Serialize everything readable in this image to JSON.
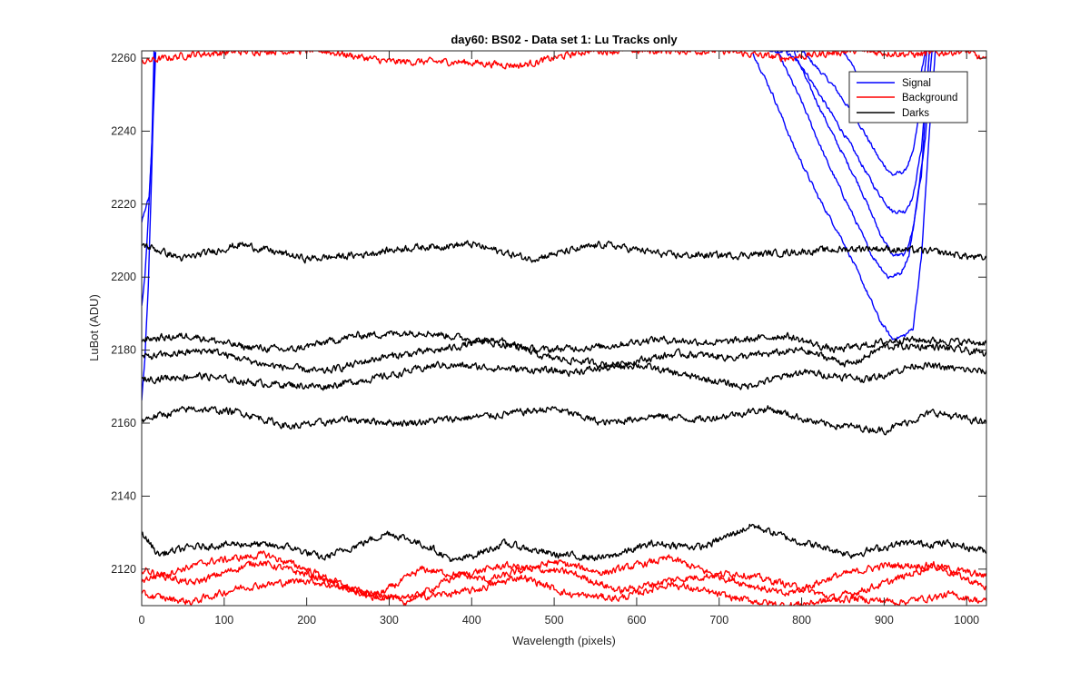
{
  "chart_data": {
    "type": "line",
    "title": "day60: BS02 - Data set 1: Lu Tracks only",
    "xlabel": "Wavelength (pixels)",
    "ylabel": "LuBot (ADU)",
    "xlim": [
      0,
      1024
    ],
    "ylim": [
      2110,
      2262
    ],
    "x_ticks": [
      0,
      100,
      200,
      300,
      400,
      500,
      600,
      700,
      800,
      900,
      1000
    ],
    "y_ticks": [
      2120,
      2140,
      2160,
      2180,
      2200,
      2220,
      2240,
      2260
    ],
    "grid": false,
    "legend_position": "top-right",
    "legend": [
      {
        "label": "Signal",
        "color": "#0000ff"
      },
      {
        "label": "Background",
        "color": "#ff0000"
      },
      {
        "label": "Darks",
        "color": "#000000"
      }
    ],
    "series": [
      {
        "group": "Darks",
        "color": "#000000",
        "points": [
          [
            0,
            2209
          ],
          [
            50,
            2205
          ],
          [
            120,
            2209
          ],
          [
            200,
            2205
          ],
          [
            260,
            2206
          ],
          [
            320,
            2208
          ],
          [
            400,
            2209
          ],
          [
            470,
            2205
          ],
          [
            560,
            2209
          ],
          [
            640,
            2206
          ],
          [
            720,
            2206
          ],
          [
            800,
            2207
          ],
          [
            880,
            2208
          ],
          [
            960,
            2207
          ],
          [
            1024,
            2205
          ]
        ]
      },
      {
        "group": "Darks",
        "color": "#000000",
        "points": [
          [
            0,
            2183
          ],
          [
            60,
            2184
          ],
          [
            120,
            2181
          ],
          [
            180,
            2180
          ],
          [
            260,
            2184
          ],
          [
            340,
            2185
          ],
          [
            400,
            2183
          ],
          [
            480,
            2180
          ],
          [
            560,
            2181
          ],
          [
            620,
            2183
          ],
          [
            700,
            2182
          ],
          [
            780,
            2184
          ],
          [
            840,
            2180
          ],
          [
            920,
            2183
          ],
          [
            1024,
            2182
          ]
        ]
      },
      {
        "group": "Darks",
        "color": "#000000",
        "points": [
          [
            0,
            2178
          ],
          [
            80,
            2180
          ],
          [
            150,
            2176
          ],
          [
            220,
            2174
          ],
          [
            290,
            2178
          ],
          [
            360,
            2180
          ],
          [
            430,
            2183
          ],
          [
            490,
            2178
          ],
          [
            570,
            2176
          ],
          [
            650,
            2179
          ],
          [
            720,
            2178
          ],
          [
            800,
            2180
          ],
          [
            860,
            2176
          ],
          [
            900,
            2181
          ],
          [
            960,
            2181
          ],
          [
            1024,
            2179
          ]
        ]
      },
      {
        "group": "Darks",
        "color": "#000000",
        "points": [
          [
            0,
            2172
          ],
          [
            70,
            2173
          ],
          [
            140,
            2171
          ],
          [
            220,
            2170
          ],
          [
            300,
            2173
          ],
          [
            360,
            2176
          ],
          [
            440,
            2175
          ],
          [
            520,
            2174
          ],
          [
            600,
            2176
          ],
          [
            660,
            2173
          ],
          [
            730,
            2170
          ],
          [
            800,
            2174
          ],
          [
            880,
            2172
          ],
          [
            940,
            2176
          ],
          [
            1024,
            2174
          ]
        ]
      },
      {
        "group": "Darks",
        "color": "#000000",
        "points": [
          [
            0,
            2161
          ],
          [
            60,
            2164
          ],
          [
            120,
            2163
          ],
          [
            180,
            2159
          ],
          [
            250,
            2161
          ],
          [
            320,
            2160
          ],
          [
            420,
            2162
          ],
          [
            500,
            2164
          ],
          [
            560,
            2160
          ],
          [
            620,
            2162
          ],
          [
            680,
            2161
          ],
          [
            760,
            2164
          ],
          [
            820,
            2160
          ],
          [
            900,
            2158
          ],
          [
            960,
            2163
          ],
          [
            1024,
            2160
          ]
        ]
      },
      {
        "group": "Darks",
        "color": "#000000",
        "points": [
          [
            0,
            2130
          ],
          [
            20,
            2124
          ],
          [
            60,
            2126
          ],
          [
            120,
            2127
          ],
          [
            180,
            2126
          ],
          [
            220,
            2123
          ],
          [
            300,
            2130
          ],
          [
            350,
            2126
          ],
          [
            380,
            2122
          ],
          [
            440,
            2127
          ],
          [
            500,
            2124
          ],
          [
            560,
            2123
          ],
          [
            620,
            2127
          ],
          [
            680,
            2126
          ],
          [
            740,
            2132
          ],
          [
            790,
            2128
          ],
          [
            860,
            2124
          ],
          [
            920,
            2127
          ],
          [
            980,
            2127
          ],
          [
            1024,
            2125
          ]
        ]
      },
      {
        "group": "Background",
        "color": "#ff0000",
        "points": [
          [
            0,
            2259
          ],
          [
            60,
            2261
          ],
          [
            140,
            2262
          ],
          [
            220,
            2262
          ],
          [
            300,
            2259
          ],
          [
            380,
            2259
          ],
          [
            460,
            2258
          ],
          [
            540,
            2262
          ],
          [
            620,
            2262
          ],
          [
            700,
            2262
          ],
          [
            780,
            2260
          ],
          [
            860,
            2262
          ],
          [
            940,
            2261
          ],
          [
            1000,
            2262
          ],
          [
            1024,
            2259
          ]
        ]
      },
      {
        "group": "Background",
        "color": "#ff0000",
        "points": [
          [
            0,
            2120
          ],
          [
            60,
            2116
          ],
          [
            140,
            2122
          ],
          [
            210,
            2118
          ],
          [
            280,
            2112
          ],
          [
            340,
            2120
          ],
          [
            420,
            2117
          ],
          [
            500,
            2122
          ],
          [
            560,
            2119
          ],
          [
            640,
            2123
          ],
          [
            700,
            2118
          ],
          [
            780,
            2113
          ],
          [
            840,
            2118
          ],
          [
            900,
            2121
          ],
          [
            960,
            2121
          ],
          [
            1024,
            2118
          ]
        ]
      },
      {
        "group": "Background",
        "color": "#ff0000",
        "points": [
          [
            0,
            2117
          ],
          [
            80,
            2122
          ],
          [
            150,
            2124
          ],
          [
            200,
            2120
          ],
          [
            260,
            2114
          ],
          [
            320,
            2111
          ],
          [
            380,
            2118
          ],
          [
            440,
            2121
          ],
          [
            520,
            2119
          ],
          [
            580,
            2114
          ],
          [
            640,
            2117
          ],
          [
            720,
            2119
          ],
          [
            780,
            2116
          ],
          [
            840,
            2112
          ],
          [
            900,
            2116
          ],
          [
            960,
            2121
          ],
          [
            1024,
            2115
          ]
        ]
      },
      {
        "group": "Background",
        "color": "#ff0000",
        "points": [
          [
            0,
            2113
          ],
          [
            60,
            2111
          ],
          [
            120,
            2115
          ],
          [
            200,
            2117
          ],
          [
            260,
            2114
          ],
          [
            320,
            2112
          ],
          [
            400,
            2114
          ],
          [
            460,
            2118
          ],
          [
            520,
            2113
          ],
          [
            580,
            2112
          ],
          [
            640,
            2116
          ],
          [
            720,
            2112
          ],
          [
            780,
            2110
          ],
          [
            860,
            2112
          ],
          [
            920,
            2111
          ],
          [
            980,
            2113
          ],
          [
            1024,
            2111
          ]
        ]
      },
      {
        "group": "Signal",
        "color": "#0000ff",
        "points": [
          [
            0,
            2192
          ],
          [
            4,
            2200
          ],
          [
            7,
            2212
          ],
          [
            10,
            2225
          ],
          [
            13,
            2240
          ],
          [
            16,
            2262
          ]
        ]
      },
      {
        "group": "Signal",
        "color": "#0000ff",
        "points": [
          [
            0,
            2166
          ],
          [
            4,
            2178
          ],
          [
            8,
            2198
          ],
          [
            11,
            2220
          ],
          [
            14,
            2244
          ],
          [
            17,
            2262
          ]
        ]
      },
      {
        "group": "Signal",
        "color": "#0000ff",
        "points": [
          [
            0,
            2215
          ],
          [
            5,
            2219
          ],
          [
            9,
            2222
          ],
          [
            12,
            2234
          ],
          [
            15,
            2262
          ]
        ]
      },
      {
        "group": "Signal",
        "color": "#0000ff",
        "points": [
          [
            760,
            2262
          ],
          [
            780,
            2262
          ],
          [
            800,
            2262
          ],
          [
            840,
            2252
          ],
          [
            870,
            2242
          ],
          [
            895,
            2232
          ],
          [
            910,
            2228
          ],
          [
            925,
            2229
          ],
          [
            935,
            2234
          ],
          [
            945,
            2248
          ],
          [
            952,
            2262
          ]
        ]
      },
      {
        "group": "Signal",
        "color": "#0000ff",
        "points": [
          [
            780,
            2262
          ],
          [
            800,
            2258
          ],
          [
            830,
            2247
          ],
          [
            860,
            2236
          ],
          [
            890,
            2224
          ],
          [
            910,
            2218
          ],
          [
            925,
            2218
          ],
          [
            935,
            2222
          ],
          [
            945,
            2235
          ],
          [
            955,
            2262
          ]
        ]
      },
      {
        "group": "Signal",
        "color": "#0000ff",
        "points": [
          [
            790,
            2262
          ],
          [
            810,
            2252
          ],
          [
            840,
            2238
          ],
          [
            870,
            2225
          ],
          [
            895,
            2212
          ],
          [
            910,
            2206
          ],
          [
            925,
            2206
          ],
          [
            935,
            2213
          ],
          [
            950,
            2238
          ],
          [
            958,
            2262
          ]
        ]
      },
      {
        "group": "Signal",
        "color": "#0000ff",
        "points": [
          [
            770,
            2262
          ],
          [
            800,
            2248
          ],
          [
            830,
            2232
          ],
          [
            860,
            2218
          ],
          [
            885,
            2206
          ],
          [
            905,
            2200
          ],
          [
            920,
            2201
          ],
          [
            930,
            2206
          ],
          [
            945,
            2228
          ],
          [
            955,
            2262
          ]
        ]
      },
      {
        "group": "Signal",
        "color": "#0000ff",
        "points": [
          [
            740,
            2262
          ],
          [
            765,
            2250
          ],
          [
            790,
            2236
          ],
          [
            820,
            2222
          ],
          [
            850,
            2210
          ],
          [
            875,
            2198
          ],
          [
            895,
            2188
          ],
          [
            910,
            2183
          ],
          [
            925,
            2184
          ],
          [
            935,
            2186
          ],
          [
            945,
            2205
          ],
          [
            955,
            2240
          ],
          [
            962,
            2262
          ]
        ]
      },
      {
        "group": "Signal",
        "color": "#0000ff",
        "points": [
          [
            850,
            2262
          ],
          [
            870,
            2255
          ],
          [
            890,
            2248
          ],
          [
            910,
            2246
          ],
          [
            930,
            2247
          ],
          [
            945,
            2256
          ],
          [
            950,
            2262
          ]
        ]
      }
    ]
  }
}
